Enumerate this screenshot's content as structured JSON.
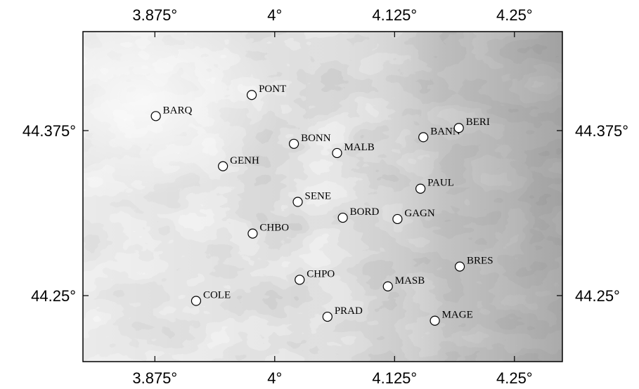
{
  "map": {
    "lon_range": [
      3.8,
      4.3
    ],
    "lat_range": [
      44.2,
      44.45
    ],
    "frame_color": "#000000",
    "colors": {
      "background": "#ffffff",
      "terrain_light": "#f4f4f4",
      "terrain_dark": "#8a8a8a",
      "marker_fill": "#ffffff"
    },
    "ticks": {
      "lon": [
        {
          "value": 3.875,
          "label": "3.875°"
        },
        {
          "value": 4.0,
          "label": "4°"
        },
        {
          "value": 4.125,
          "label": "4.125°"
        },
        {
          "value": 4.25,
          "label": "4.25°"
        }
      ],
      "lat": [
        {
          "value": 44.375,
          "label": "44.375°"
        },
        {
          "value": 44.25,
          "label": "44.25°"
        }
      ]
    },
    "stations": [
      {
        "name": "PONT",
        "lon": 3.976,
        "lat": 44.402
      },
      {
        "name": "BARQ",
        "lon": 3.876,
        "lat": 44.386
      },
      {
        "name": "GENH",
        "lon": 3.946,
        "lat": 44.348
      },
      {
        "name": "BONN",
        "lon": 4.02,
        "lat": 44.365
      },
      {
        "name": "MALB",
        "lon": 4.065,
        "lat": 44.358
      },
      {
        "name": "BANN",
        "lon": 4.155,
        "lat": 44.37
      },
      {
        "name": "BERI",
        "lon": 4.192,
        "lat": 44.377
      },
      {
        "name": "PAUL",
        "lon": 4.152,
        "lat": 44.331
      },
      {
        "name": "SENE",
        "lon": 4.024,
        "lat": 44.321
      },
      {
        "name": "BORD",
        "lon": 4.071,
        "lat": 44.309
      },
      {
        "name": "GAGN",
        "lon": 4.128,
        "lat": 44.308
      },
      {
        "name": "CHBO",
        "lon": 3.977,
        "lat": 44.297
      },
      {
        "name": "BRES",
        "lon": 4.193,
        "lat": 44.272
      },
      {
        "name": "CHPO",
        "lon": 4.026,
        "lat": 44.262
      },
      {
        "name": "MASB",
        "lon": 4.118,
        "lat": 44.257
      },
      {
        "name": "COLE",
        "lon": 3.918,
        "lat": 44.246
      },
      {
        "name": "PRAD",
        "lon": 4.055,
        "lat": 44.234
      },
      {
        "name": "MAGE",
        "lon": 4.167,
        "lat": 44.231
      }
    ]
  }
}
